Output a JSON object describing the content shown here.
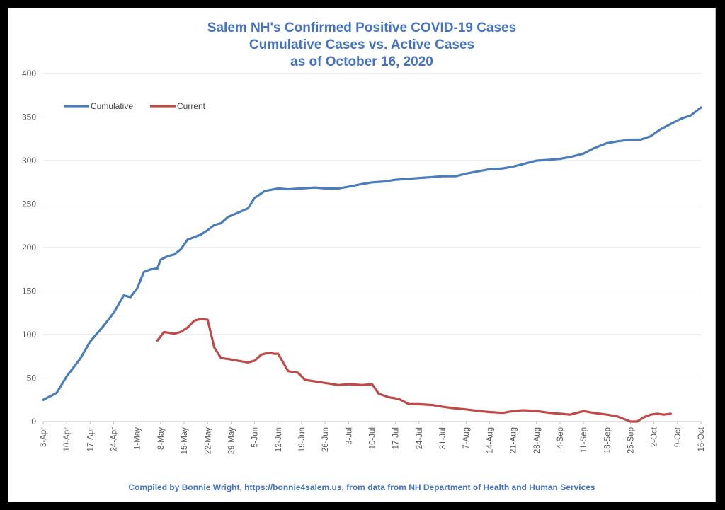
{
  "title_lines": [
    "Salem NH's Confirmed Positive COVID-19 Cases",
    "Cumulative Cases vs. Active Cases",
    "as of October 16, 2020"
  ],
  "footer": "Compiled by Bonnie Wright, https://bonnie4salem.us, from data from NH Department of Health and Human Services",
  "chart_data": {
    "type": "line",
    "title": "Salem NH's Confirmed Positive COVID-19 Cases / Cumulative Cases vs. Active Cases / as of October 16, 2020",
    "xlabel": "",
    "ylabel": "",
    "ylim": [
      0,
      400
    ],
    "yticks": [
      0,
      50,
      100,
      150,
      200,
      250,
      300,
      350,
      400
    ],
    "xticks": [
      "3-Apr",
      "10-Apr",
      "17-Apr",
      "24-Apr",
      "1-May",
      "8-May",
      "15-May",
      "22-May",
      "29-May",
      "5-Jun",
      "12-Jun",
      "19-Jun",
      "26-Jun",
      "3-Jul",
      "10-Jul",
      "17-Jul",
      "24-Jul",
      "31-Jul",
      "7-Aug",
      "14-Aug",
      "21-Aug",
      "28-Aug",
      "4-Sep",
      "11-Sep",
      "18-Sep",
      "25-Sep",
      "2-Oct",
      "9-Oct",
      "16-Oct"
    ],
    "grid": true,
    "legend_position": "top-left",
    "series": [
      {
        "name": "Cumulative",
        "color": "#4a7ebb",
        "x": [
          "3-Apr",
          "7-Apr",
          "10-Apr",
          "14-Apr",
          "17-Apr",
          "21-Apr",
          "24-Apr",
          "27-Apr",
          "29-Apr",
          "1-May",
          "3-May",
          "5-May",
          "7-May",
          "8-May",
          "10-May",
          "12-May",
          "14-May",
          "16-May",
          "18-May",
          "20-May",
          "22-May",
          "24-May",
          "26-May",
          "28-May",
          "31-May",
          "3-Jun",
          "5-Jun",
          "8-Jun",
          "12-Jun",
          "15-Jun",
          "19-Jun",
          "23-Jun",
          "26-Jun",
          "30-Jun",
          "3-Jul",
          "7-Jul",
          "10-Jul",
          "14-Jul",
          "17-Jul",
          "21-Jul",
          "24-Jul",
          "28-Jul",
          "31-Jul",
          "4-Aug",
          "7-Aug",
          "11-Aug",
          "14-Aug",
          "18-Aug",
          "21-Aug",
          "24-Aug",
          "28-Aug",
          "1-Sep",
          "4-Sep",
          "7-Sep",
          "11-Sep",
          "14-Sep",
          "18-Sep",
          "21-Sep",
          "25-Sep",
          "28-Sep",
          "1-Oct",
          "4-Oct",
          "7-Oct",
          "10-Oct",
          "13-Oct",
          "16-Oct"
        ],
        "values": [
          25,
          33,
          52,
          72,
          92,
          110,
          125,
          145,
          143,
          153,
          172,
          175,
          176,
          186,
          190,
          192,
          198,
          209,
          212,
          215,
          220,
          226,
          228,
          235,
          240,
          245,
          257,
          265,
          268,
          267,
          268,
          269,
          268,
          268,
          270,
          273,
          275,
          276,
          278,
          279,
          280,
          281,
          282,
          282,
          285,
          288,
          290,
          291,
          293,
          296,
          300,
          301,
          302,
          304,
          308,
          314,
          320,
          322,
          324,
          324,
          328,
          336,
          342,
          348,
          352,
          361
        ]
      },
      {
        "name": "Current",
        "color": "#be4b48",
        "x": [
          "7-May",
          "9-May",
          "12-May",
          "14-May",
          "16-May",
          "18-May",
          "20-May",
          "22-May",
          "24-May",
          "26-May",
          "28-May",
          "31-May",
          "3-Jun",
          "5-Jun",
          "7-Jun",
          "9-Jun",
          "11-Jun",
          "12-Jun",
          "15-Jun",
          "18-Jun",
          "20-Jun",
          "25-Jun",
          "30-Jun",
          "3-Jul",
          "7-Jul",
          "10-Jul",
          "12-Jul",
          "15-Jul",
          "18-Jul",
          "21-Jul",
          "24-Jul",
          "28-Jul",
          "31-Jul",
          "4-Aug",
          "7-Aug",
          "11-Aug",
          "14-Aug",
          "18-Aug",
          "21-Aug",
          "24-Aug",
          "28-Aug",
          "1-Sep",
          "4-Sep",
          "7-Sep",
          "11-Sep",
          "14-Sep",
          "18-Sep",
          "21-Sep",
          "23-Sep",
          "25-Sep",
          "27-Sep",
          "29-Sep",
          "1-Oct",
          "3-Oct",
          "5-Oct",
          "7-Oct"
        ],
        "values": [
          93,
          103,
          101,
          103,
          108,
          116,
          118,
          117,
          85,
          73,
          72,
          70,
          68,
          70,
          77,
          79,
          78,
          78,
          58,
          56,
          48,
          45,
          42,
          43,
          42,
          43,
          32,
          28,
          26,
          20,
          20,
          19,
          17,
          15,
          14,
          12,
          11,
          10,
          12,
          13,
          12,
          10,
          9,
          8,
          12,
          10,
          8,
          6,
          3,
          0,
          0,
          5,
          8,
          9,
          8,
          9
        ]
      }
    ]
  }
}
